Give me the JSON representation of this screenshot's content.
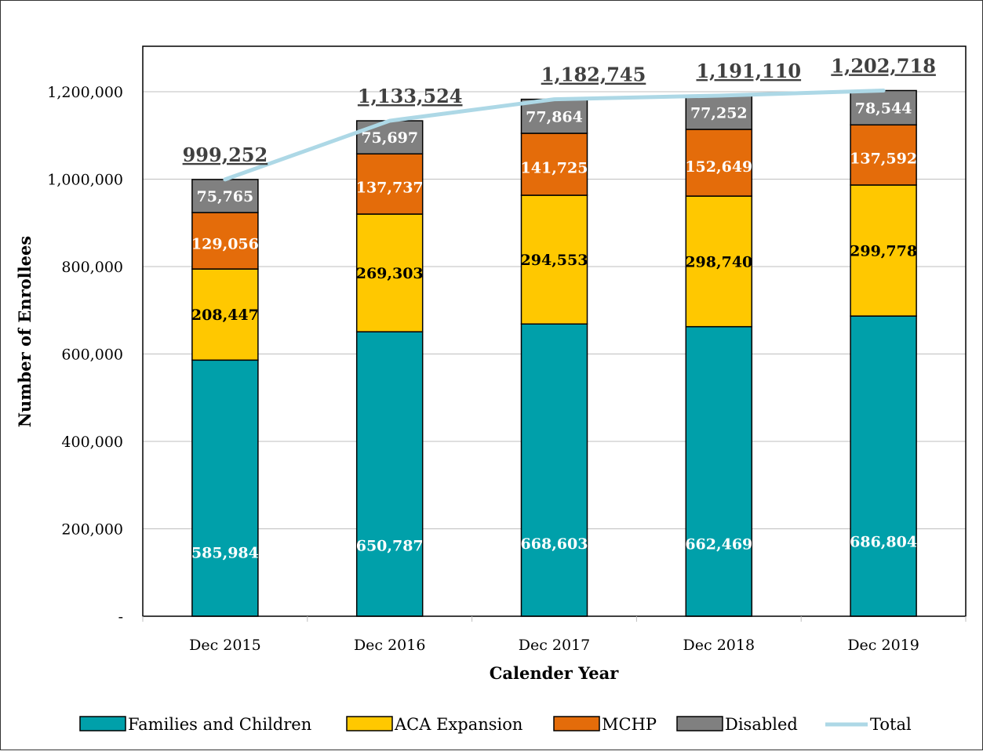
{
  "chart_data": {
    "type": "bar",
    "stacked": true,
    "categories": [
      "Dec 2015",
      "Dec 2016",
      "Dec 2017",
      "Dec 2018",
      "Dec 2019"
    ],
    "series": [
      {
        "name": "Families and Children",
        "color": "#00A0AA",
        "label_color": "#ffffff",
        "values": [
          585984,
          650787,
          668603,
          662469,
          686804
        ],
        "labels": [
          "585,984",
          "650,787",
          "668,603",
          "662,469",
          "686,804"
        ]
      },
      {
        "name": "ACA Expansion",
        "color": "#FFC800",
        "label_color": "#000000",
        "values": [
          208447,
          269303,
          294553,
          298740,
          299778
        ],
        "labels": [
          "208,447",
          "269,303",
          "294,553",
          "298,740",
          "299,778"
        ]
      },
      {
        "name": "MCHP",
        "color": "#E46C0A",
        "label_color": "#ffffff",
        "values": [
          129056,
          137737,
          141725,
          152649,
          137592
        ],
        "labels": [
          "129,056",
          "137,737",
          "141,725",
          "152,649",
          "137,592"
        ]
      },
      {
        "name": "Disabled",
        "color": "#808080",
        "label_color": "#ffffff",
        "values": [
          75765,
          75697,
          77864,
          77252,
          78544
        ],
        "labels": [
          "75,765",
          "75,697",
          "77,864",
          "77,252",
          "78,544"
        ]
      }
    ],
    "total": {
      "name": "Total",
      "color": "#ADD8E6",
      "values": [
        999252,
        1133524,
        1182745,
        1191110,
        1202718
      ],
      "labels": [
        "999,252",
        "1,133,524",
        "1,182,745",
        "1,191,110",
        "1,202,718"
      ]
    },
    "xlabel": "Calender Year",
    "ylabel": "Number of Enrollees",
    "ylim": [
      0,
      1200000
    ],
    "yticks": [
      0,
      200000,
      400000,
      600000,
      800000,
      1000000,
      1200000
    ],
    "ytick_labels": [
      "-",
      "200,000",
      "400,000",
      "600,000",
      "800,000",
      "1,000,000",
      "1,200,000"
    ],
    "grid": true,
    "legend_position": "bottom"
  }
}
